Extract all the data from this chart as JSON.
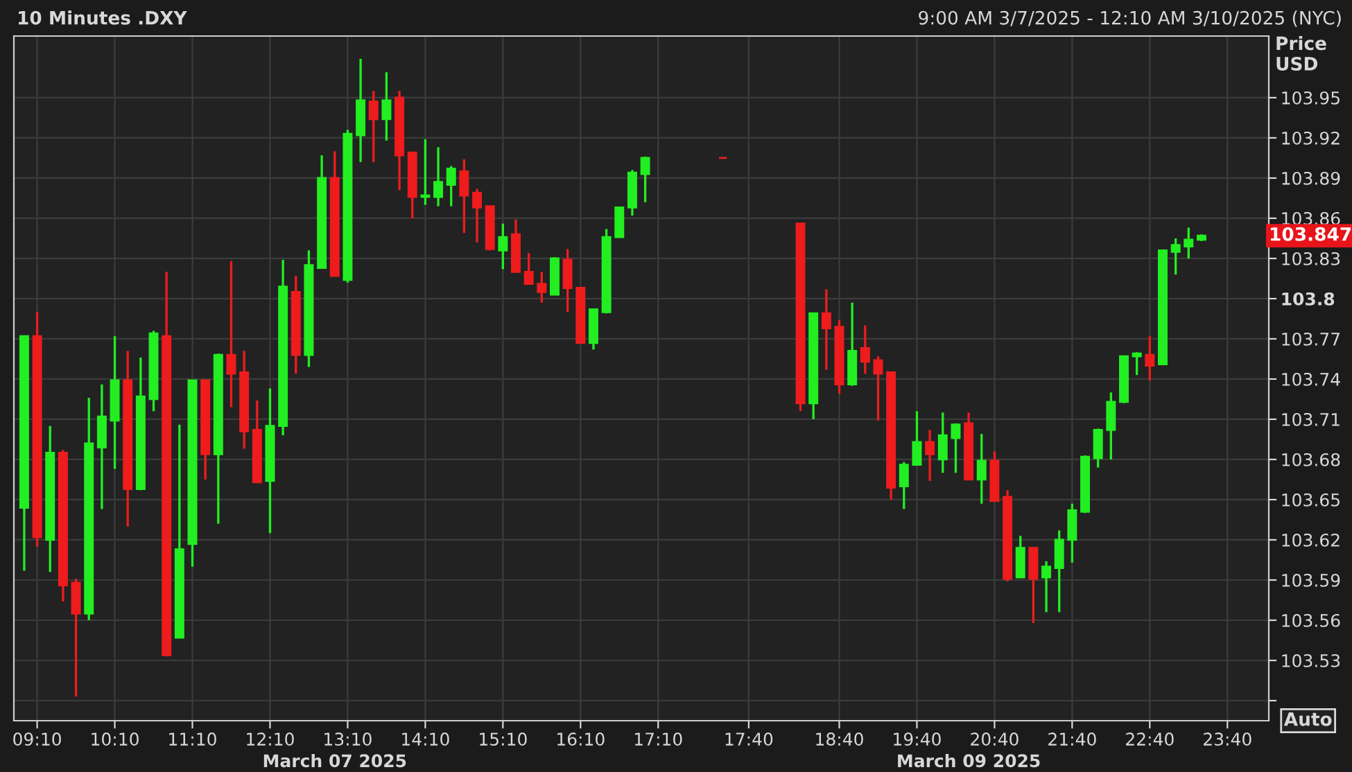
{
  "chart_data": {
    "type": "candlestick",
    "title": "10 Minutes .DXY",
    "ylabel": "Price\nUSD",
    "annotations": [
      "9:00 AM 3/7/2025 - 12:10 AM 3/10/2025 (NYC)",
      "March 07 2025",
      "March 09 2025",
      "Auto",
      "103.847"
    ],
    "categories": [
      null,
      "09:10",
      null,
      null,
      null,
      null,
      null,
      "10:10",
      null,
      null,
      null,
      null,
      null,
      "11:10",
      null,
      null,
      null,
      null,
      null,
      "12:10",
      null,
      null,
      null,
      null,
      null,
      "13:10",
      null,
      null,
      null,
      null,
      null,
      "14:10",
      null,
      null,
      null,
      null,
      null,
      "15:10",
      null,
      null,
      null,
      null,
      null,
      "16:10",
      null,
      null,
      null,
      null,
      null,
      "17:10",
      null,
      null,
      null,
      null,
      null,
      null,
      "17:40",
      null,
      null,
      null,
      null,
      null,
      null,
      "18:40",
      null,
      null,
      null,
      null,
      null,
      "19:40",
      null,
      null,
      null,
      null,
      null,
      "20:40",
      null,
      null,
      null,
      null,
      null,
      "21:40",
      null,
      null,
      null,
      null,
      null,
      "22:40",
      null,
      null,
      null,
      null,
      null,
      "23:40",
      null,
      null,
      null
    ],
    "ohlc": [
      [
        103.644,
        103.772,
        103.597,
        103.772
      ],
      [
        103.772,
        103.79,
        103.615,
        103.622
      ],
      [
        103.62,
        103.705,
        103.596,
        103.685
      ],
      [
        103.685,
        103.687,
        103.574,
        103.586
      ],
      [
        103.588,
        103.591,
        103.503,
        103.565
      ],
      [
        103.565,
        103.726,
        103.56,
        103.692
      ],
      [
        103.689,
        103.736,
        103.643,
        103.712
      ],
      [
        103.709,
        103.772,
        103.673,
        103.739
      ],
      [
        103.739,
        103.761,
        103.63,
        103.658
      ],
      [
        103.658,
        103.756,
        103.657,
        103.727
      ],
      [
        103.725,
        103.776,
        103.716,
        103.774
      ],
      [
        103.772,
        103.82,
        103.533,
        103.534
      ],
      [
        103.547,
        103.706,
        103.547,
        103.613
      ],
      [
        103.617,
        103.739,
        103.6,
        103.739
      ],
      [
        103.739,
        103.739,
        103.665,
        103.684
      ],
      [
        103.684,
        103.759,
        103.632,
        103.758
      ],
      [
        103.758,
        103.828,
        103.719,
        103.744
      ],
      [
        103.745,
        103.761,
        103.688,
        103.701
      ],
      [
        103.702,
        103.724,
        103.663,
        103.663
      ],
      [
        103.664,
        103.733,
        103.625,
        103.705
      ],
      [
        103.705,
        103.829,
        103.698,
        103.809
      ],
      [
        103.805,
        103.817,
        103.744,
        103.758
      ],
      [
        103.758,
        103.836,
        103.749,
        103.825
      ],
      [
        103.823,
        103.907,
        103.823,
        103.89
      ],
      [
        103.89,
        103.91,
        103.817,
        103.817
      ],
      [
        103.814,
        103.926,
        103.812,
        103.923
      ],
      [
        103.922,
        103.979,
        103.902,
        103.948
      ],
      [
        103.947,
        103.955,
        103.902,
        103.934
      ],
      [
        103.934,
        103.969,
        103.918,
        103.948
      ],
      [
        103.95,
        103.955,
        103.881,
        103.907
      ],
      [
        103.909,
        103.909,
        103.86,
        103.876
      ],
      [
        103.876,
        103.919,
        103.87,
        103.877
      ],
      [
        103.876,
        103.913,
        103.869,
        103.887
      ],
      [
        103.885,
        103.899,
        103.869,
        103.897
      ],
      [
        103.895,
        103.904,
        103.849,
        103.877
      ],
      [
        103.879,
        103.882,
        103.842,
        103.868
      ],
      [
        103.869,
        103.869,
        103.836,
        103.837
      ],
      [
        103.836,
        103.856,
        103.822,
        103.846
      ],
      [
        103.848,
        103.859,
        103.82,
        103.82
      ],
      [
        103.82,
        103.834,
        103.811,
        103.811
      ],
      [
        103.811,
        103.82,
        103.797,
        103.805
      ],
      [
        103.803,
        103.831,
        103.803,
        103.83
      ],
      [
        103.829,
        103.837,
        103.79,
        103.808
      ],
      [
        103.808,
        103.808,
        103.767,
        103.767
      ],
      [
        103.767,
        103.792,
        103.762,
        103.792
      ],
      [
        103.79,
        103.852,
        103.789,
        103.846
      ],
      [
        103.846,
        103.868,
        103.846,
        103.868
      ],
      [
        103.868,
        103.896,
        103.862,
        103.894
      ],
      [
        103.893,
        103.906,
        103.872,
        103.905
      ],
      null,
      null,
      null,
      null,
      null,
      [
        103.905,
        103.905,
        103.905,
        103.905
      ],
      null,
      null,
      null,
      null,
      null,
      [
        103.856,
        103.856,
        103.716,
        103.722
      ],
      [
        103.722,
        103.789,
        103.71,
        103.789
      ],
      [
        103.789,
        103.807,
        103.747,
        103.778
      ],
      [
        103.779,
        103.784,
        103.729,
        103.736
      ],
      [
        103.736,
        103.797,
        103.735,
        103.761
      ],
      [
        103.763,
        103.78,
        103.744,
        103.753
      ],
      [
        103.754,
        103.757,
        103.709,
        103.744
      ],
      [
        103.745,
        103.745,
        103.65,
        103.659
      ],
      [
        103.66,
        103.678,
        103.643,
        103.676
      ],
      [
        103.676,
        103.716,
        103.676,
        103.693
      ],
      [
        103.693,
        103.702,
        103.664,
        103.684
      ],
      [
        103.68,
        103.715,
        103.67,
        103.698
      ],
      [
        103.696,
        103.707,
        103.67,
        103.706
      ],
      [
        103.707,
        103.715,
        103.665,
        103.665
      ],
      [
        103.665,
        103.699,
        103.647,
        103.679
      ],
      [
        103.679,
        103.686,
        103.649,
        103.649
      ],
      [
        103.652,
        103.657,
        103.589,
        103.591
      ],
      [
        103.592,
        103.623,
        103.592,
        103.614
      ],
      [
        103.614,
        103.614,
        103.558,
        103.591
      ],
      [
        103.592,
        103.604,
        103.566,
        103.6
      ],
      [
        103.599,
        103.627,
        103.566,
        103.62
      ],
      [
        103.62,
        103.647,
        103.603,
        103.642
      ],
      [
        103.641,
        103.683,
        103.64,
        103.682
      ],
      [
        103.681,
        103.703,
        103.674,
        103.702
      ],
      [
        103.702,
        103.73,
        103.68,
        103.723
      ],
      [
        103.723,
        103.757,
        103.722,
        103.757
      ],
      [
        103.757,
        103.76,
        103.743,
        103.759
      ],
      [
        103.758,
        103.772,
        103.739,
        103.75
      ],
      [
        103.751,
        103.836,
        103.751,
        103.836
      ],
      [
        103.835,
        103.845,
        103.818,
        103.84
      ],
      [
        103.839,
        103.853,
        103.83,
        103.844
      ],
      [
        103.844,
        103.848,
        103.843,
        103.847
      ],
      null,
      null,
      null,
      null,
      null
    ],
    "colors": [
      "#22ee22",
      "#ee1c1c",
      "#22ee22",
      "#ee1c1c",
      "#ee1c1c",
      "#22ee22",
      "#22ee22",
      "#22ee22",
      "#ee1c1c",
      "#22ee22",
      "#22ee22",
      "#ee1c1c",
      "#22ee22",
      "#22ee22",
      "#ee1c1c",
      "#22ee22",
      "#ee1c1c",
      "#ee1c1c",
      "#ee1c1c",
      "#22ee22",
      "#22ee22",
      "#ee1c1c",
      "#22ee22",
      "#22ee22",
      "#ee1c1c",
      "#22ee22",
      "#22ee22",
      "#ee1c1c",
      "#22ee22",
      "#ee1c1c",
      "#ee1c1c",
      "#22ee22",
      "#22ee22",
      "#22ee22",
      "#ee1c1c",
      "#ee1c1c",
      "#ee1c1c",
      "#22ee22",
      "#ee1c1c",
      "#ee1c1c",
      "#ee1c1c",
      "#22ee22",
      "#ee1c1c",
      "#ee1c1c",
      "#22ee22",
      "#22ee22",
      "#22ee22",
      "#22ee22",
      "#22ee22",
      null,
      null,
      null,
      null,
      null,
      "#ee1c1c",
      null,
      null,
      null,
      null,
      null,
      "#ee1c1c",
      "#22ee22",
      "#ee1c1c",
      "#ee1c1c",
      "#22ee22",
      "#ee1c1c",
      "#ee1c1c",
      "#ee1c1c",
      "#22ee22",
      "#22ee22",
      "#ee1c1c",
      "#22ee22",
      "#22ee22",
      "#ee1c1c",
      "#22ee22",
      "#ee1c1c",
      "#ee1c1c",
      "#22ee22",
      "#ee1c1c",
      "#22ee22",
      "#22ee22",
      "#22ee22",
      "#22ee22",
      "#22ee22",
      "#22ee22",
      "#22ee22",
      "#22ee22",
      "#ee1c1c",
      "#22ee22",
      "#22ee22",
      "#22ee22",
      "#22ee22",
      null,
      null,
      null,
      null,
      null
    ],
    "ylim": [
      103.485,
      103.996
    ],
    "yticks": [
      {
        "value": 103.5,
        "label": null
      },
      103.53,
      103.56,
      103.59,
      103.62,
      103.65,
      103.68,
      103.71,
      103.74,
      103.77,
      {
        "value": 103.8,
        "label": "103.8"
      },
      103.83,
      103.86,
      103.89,
      103.92,
      103.95
    ],
    "grid": true
  }
}
